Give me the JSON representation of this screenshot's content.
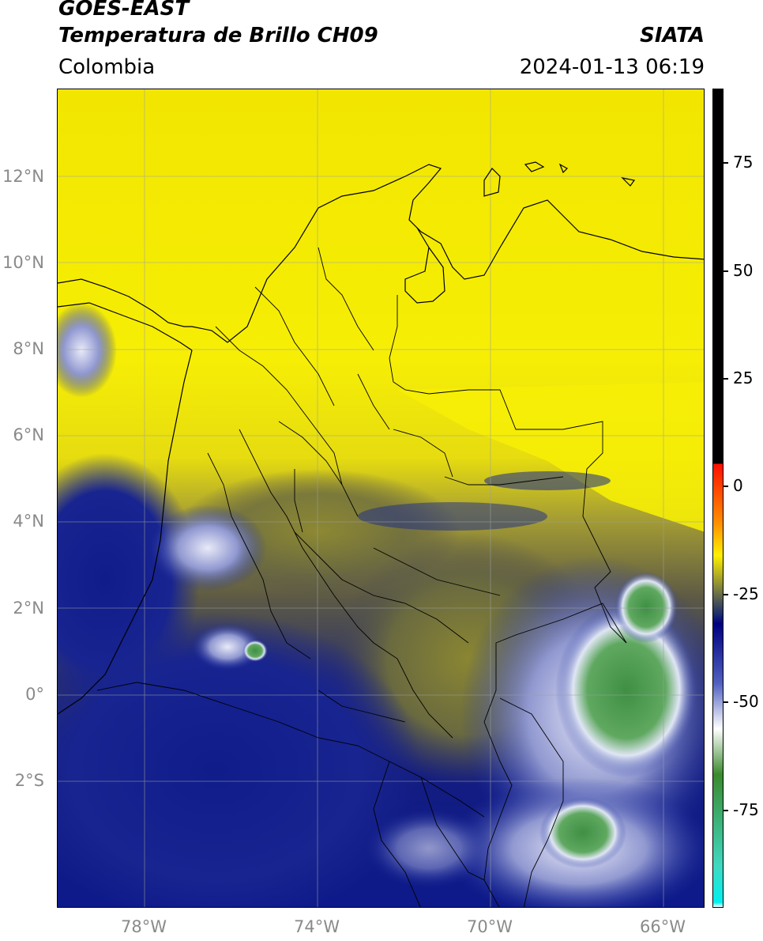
{
  "header": {
    "satellite": "GOES-EAST",
    "product": "Temperatura de Brillo CH09",
    "region": "Colombia",
    "source": "SIATA",
    "datetime": "2024-01-13 06:19"
  },
  "map": {
    "lat_labels": [
      "12°N",
      "10°N",
      "8°N",
      "6°N",
      "4°N",
      "2°N",
      "0°",
      "2°S"
    ],
    "lon_labels": [
      "78°W",
      "74°W",
      "70°W",
      "66°W"
    ],
    "extent_lon": [
      -80,
      -65
    ],
    "extent_lat": [
      -5,
      14
    ],
    "gridlines": true,
    "colors": {
      "warm_yellow": "#f5ec00",
      "olive": "#8c8a2a",
      "dark_olive": "#4f4e3a",
      "deep_blue": "#101a80",
      "light_blue_white": "#d8dcf0",
      "cold_green": "#3f8a3a",
      "coast_line": "#000000"
    }
  },
  "colorbar": {
    "ticks": [
      "75",
      "50",
      "25",
      "0",
      "-25",
      "-50",
      "-75"
    ],
    "stops": [
      {
        "value": 90,
        "color": "#000000"
      },
      {
        "value": 8,
        "color": "#000000"
      },
      {
        "value": 8,
        "color": "#ff1000"
      },
      {
        "value": -5,
        "color": "#ff9000"
      },
      {
        "value": -12,
        "color": "#fff000"
      },
      {
        "value": -25,
        "color": "#1a2a6e"
      },
      {
        "value": -27,
        "color": "#000080"
      },
      {
        "value": -40,
        "color": "#5060c0"
      },
      {
        "value": -50,
        "color": "#ffffff"
      },
      {
        "value": -60,
        "color": "#3a8a2e"
      },
      {
        "value": -80,
        "color": "#40d8c0"
      },
      {
        "value": -88,
        "color": "#00f0f0"
      },
      {
        "value": -89,
        "color": "#ffffff"
      }
    ]
  }
}
